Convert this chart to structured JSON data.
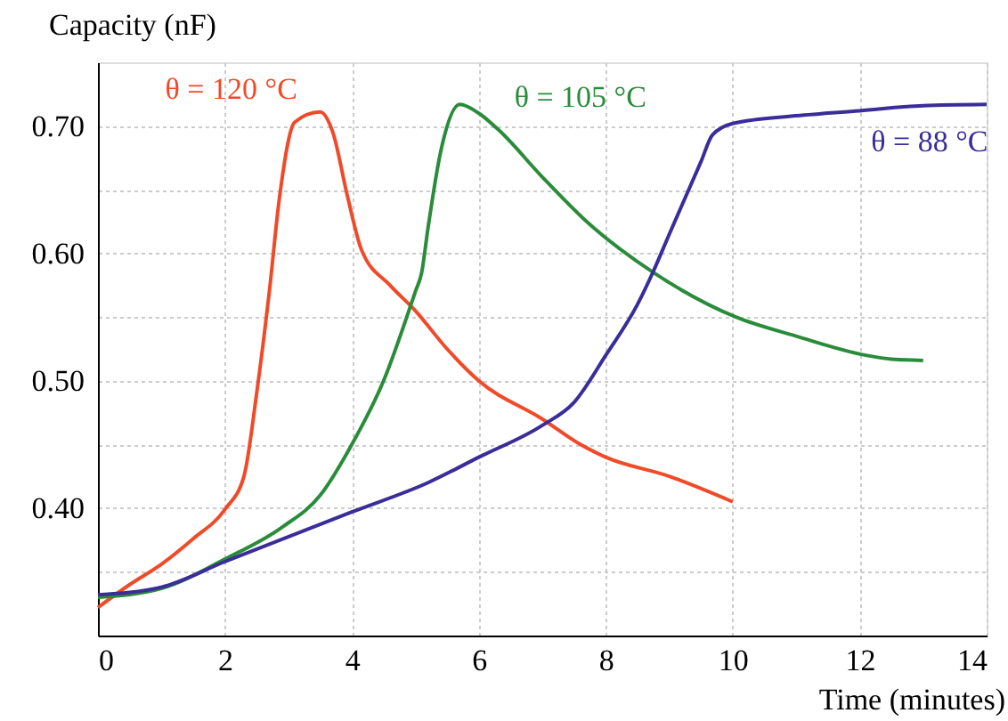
{
  "chart_data": {
    "type": "line",
    "xlabel": "Time (minutes)",
    "ylabel": "Capacity (nF)",
    "xlim": [
      0,
      14
    ],
    "ylim": [
      0.3,
      0.75
    ],
    "xticks": [
      0,
      2,
      4,
      6,
      8,
      10,
      12,
      14
    ],
    "yticks": [
      {
        "value": 0.35,
        "label": null
      },
      {
        "value": 0.4,
        "label": "0.40"
      },
      {
        "value": 0.45,
        "label": null
      },
      {
        "value": 0.5,
        "label": "0.50"
      },
      {
        "value": 0.55,
        "label": null
      },
      {
        "value": 0.6,
        "label": "0.60"
      },
      {
        "value": 0.65,
        "label": null
      },
      {
        "value": 0.7,
        "label": "0.70"
      }
    ],
    "grid": true,
    "marker": "none",
    "line_style": "solid",
    "series": [
      {
        "name": "θ = 120 °C",
        "color": "#f04a28",
        "x": [
          0,
          0.5,
          1,
          1.5,
          2,
          2.3,
          2.5,
          2.7,
          2.86,
          3.1,
          3.5,
          3.7,
          3.93,
          4.15,
          4.6,
          5,
          5.5,
          6,
          7,
          7.6,
          8,
          9,
          10
        ],
        "values": [
          0.322,
          0.34,
          0.356,
          0.376,
          0.399,
          0.425,
          0.49,
          0.57,
          0.644,
          0.703,
          0.711,
          0.695,
          0.645,
          0.603,
          0.575,
          0.555,
          0.525,
          0.5,
          0.47,
          0.45,
          0.44,
          0.425,
          0.405
        ]
      },
      {
        "name": "θ = 105 °C",
        "color": "#2a8c3a",
        "x": [
          0,
          1,
          2,
          2.9,
          3.5,
          4,
          4.5,
          5,
          5.1,
          5.2,
          5.4,
          5.7,
          6,
          6.31,
          7,
          7.72,
          8.75,
          10.05,
          11,
          12.1,
          12.5,
          13
        ],
        "values": [
          0.33,
          0.337,
          0.36,
          0.385,
          0.41,
          0.45,
          0.5,
          0.57,
          0.585,
          0.62,
          0.68,
          0.717,
          0.71,
          0.697,
          0.66,
          0.624,
          0.585,
          0.55,
          0.535,
          0.52,
          0.517,
          0.516
        ]
      },
      {
        "name": "θ = 88 °C",
        "color": "#3a2d9a",
        "x": [
          0,
          1,
          2,
          4,
          5.2,
          6,
          7,
          7.5,
          8,
          8.5,
          8.75,
          9,
          9.5,
          9.68,
          10,
          11,
          12,
          13,
          14
        ],
        "values": [
          0.332,
          0.338,
          0.358,
          0.397,
          0.42,
          0.44,
          0.465,
          0.483,
          0.52,
          0.56,
          0.586,
          0.615,
          0.672,
          0.693,
          0.702,
          0.708,
          0.712,
          0.716,
          0.717
        ]
      }
    ]
  }
}
